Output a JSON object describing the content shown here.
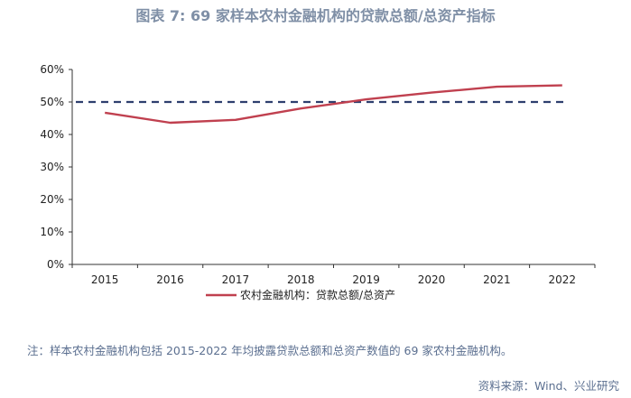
{
  "title": "图表 7:  69 家样本农村金融机构的贷款总额/总资产指标",
  "note": "注：样本农村金融机构包括 2015-2022 年均披露贷款总额和总资产数值的 69 家农村金融机构。",
  "source": "资料来源：Wind、兴业研究",
  "colors": {
    "series": "#c0404f",
    "reference": "#2e3f6e",
    "axis": "#333333",
    "title": "#7f8fa6",
    "note": "#5b6f90"
  },
  "chart_data": {
    "type": "line",
    "categories": [
      "2015",
      "2016",
      "2017",
      "2018",
      "2019",
      "2020",
      "2021",
      "2022"
    ],
    "ylim": [
      0,
      60
    ],
    "yticks": [
      0,
      10,
      20,
      30,
      40,
      50,
      60
    ],
    "ytick_labels": [
      "0%",
      "10%",
      "20%",
      "30%",
      "40%",
      "50%",
      "60%"
    ],
    "series": [
      {
        "name": "农村金融机构：贷款总额/总资产",
        "values": [
          46.7,
          43.6,
          44.5,
          48.0,
          50.8,
          52.9,
          54.7,
          55.1
        ]
      }
    ],
    "reference_line": {
      "value": 50,
      "style": "dashed"
    },
    "grid": false,
    "legend_position": "bottom"
  }
}
